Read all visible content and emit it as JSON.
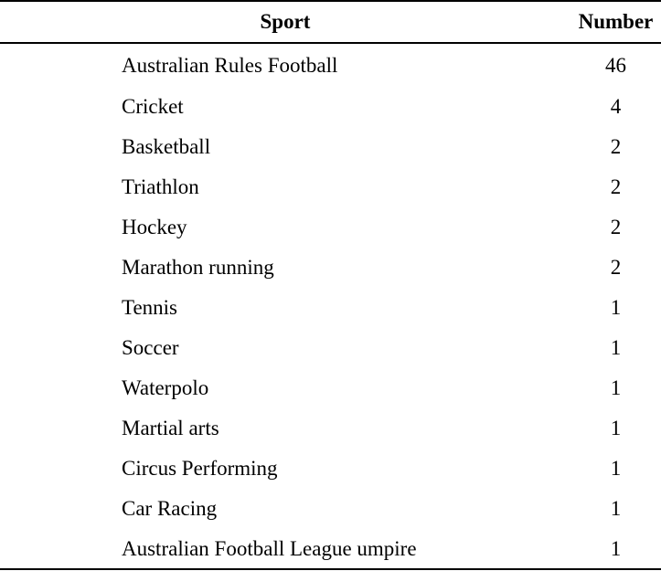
{
  "table": {
    "headers": {
      "sport": "Sport",
      "number": "Number"
    },
    "rows": [
      {
        "sport": "Australian Rules Football",
        "number": "46"
      },
      {
        "sport": "Cricket",
        "number": "4"
      },
      {
        "sport": "Basketball",
        "number": "2"
      },
      {
        "sport": "Triathlon",
        "number": "2"
      },
      {
        "sport": "Hockey",
        "number": "2"
      },
      {
        "sport": "Marathon running",
        "number": "2"
      },
      {
        "sport": "Tennis",
        "number": "1"
      },
      {
        "sport": "Soccer",
        "number": "1"
      },
      {
        "sport": "Waterpolo",
        "number": "1"
      },
      {
        "sport": "Martial arts",
        "number": "1"
      },
      {
        "sport": "Circus Performing",
        "number": "1"
      },
      {
        "sport": "Car Racing",
        "number": "1"
      },
      {
        "sport": "Australian Football League umpire",
        "number": "1"
      }
    ]
  }
}
